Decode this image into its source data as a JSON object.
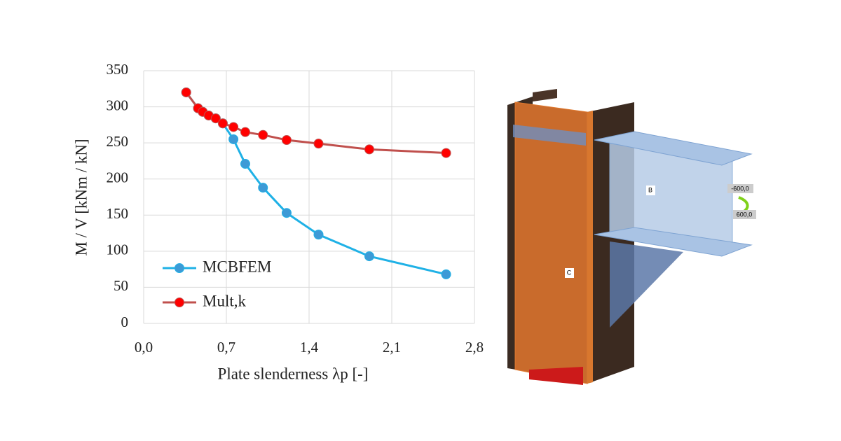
{
  "chart_data": {
    "type": "line",
    "x_label": "Plate slenderness λp [-]",
    "y_label": "M / V [kNm / kN]",
    "x": [
      0.36,
      0.46,
      0.5,
      0.55,
      0.61,
      0.67,
      0.76,
      0.86,
      1.01,
      1.21,
      1.48,
      1.91,
      2.56
    ],
    "series": [
      {
        "name": "MCBFEM",
        "color": "#1fb1e6",
        "marker_color": "#3d9ad6",
        "values": [
          320,
          298,
          293,
          288,
          284,
          277,
          255,
          221,
          188,
          153,
          123,
          93,
          68
        ]
      },
      {
        "name": "Mult,k",
        "color": "#c0504d",
        "marker_color": "#ff0000",
        "values": [
          320,
          298,
          293,
          288,
          284,
          277,
          272,
          265,
          261,
          254,
          249,
          241,
          236
        ]
      }
    ],
    "xlim": [
      0,
      2.8
    ],
    "xticks": [
      {
        "value": 0,
        "label": "0,0"
      },
      {
        "value": 0.7,
        "label": "0,7"
      },
      {
        "value": 1.4,
        "label": "1,4"
      },
      {
        "value": 2.1,
        "label": "2,1"
      },
      {
        "value": 2.8,
        "label": "2,8"
      }
    ],
    "ylim": [
      0,
      350
    ],
    "yticks": [
      0,
      50,
      100,
      150,
      200,
      250,
      300,
      350
    ],
    "grid": true,
    "legend": "lower-left"
  },
  "model": {
    "labels": [
      "B",
      "C",
      "-600,0",
      "600,0"
    ]
  }
}
